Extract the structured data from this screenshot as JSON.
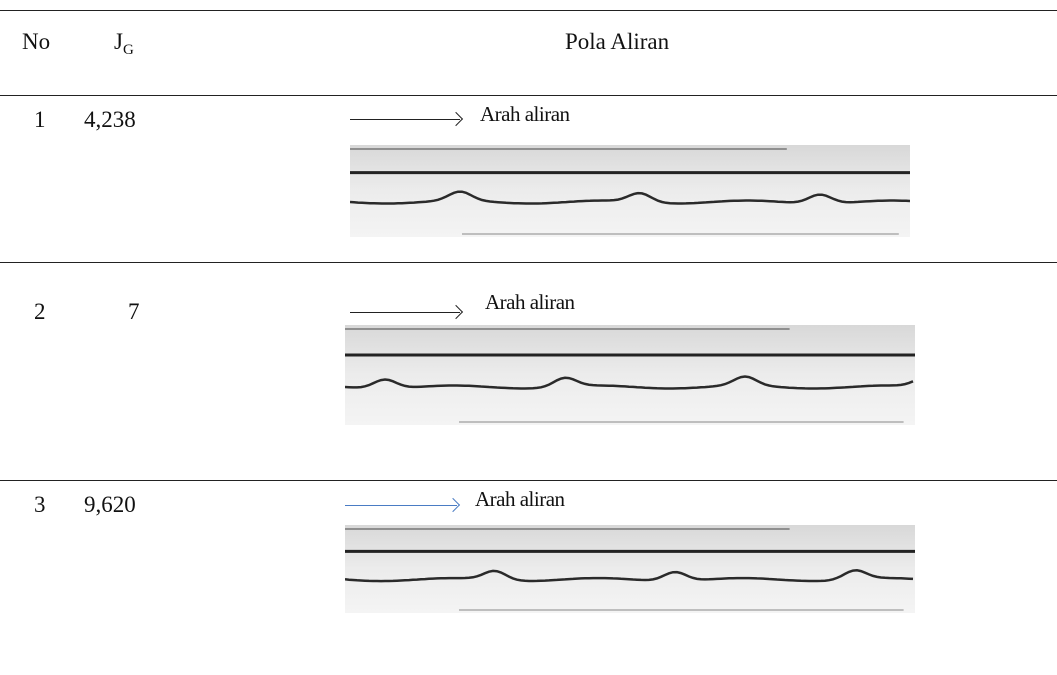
{
  "header": {
    "no": "No",
    "jg": {
      "main": "J",
      "sub": "G"
    },
    "pattern": "Pola Aliran"
  },
  "rows": [
    {
      "no": "1",
      "jg": "4,238",
      "caption": "Arah aliran"
    },
    {
      "no": "2",
      "jg": "7",
      "caption": "Arah aliran"
    },
    {
      "no": "3",
      "jg": "9,620",
      "caption": "Arah aliran"
    }
  ]
}
